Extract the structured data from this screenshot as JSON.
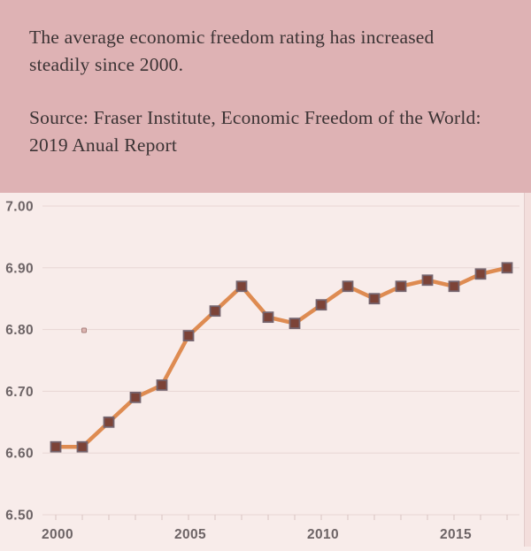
{
  "header": {
    "title": "The average economic freedom rating has increased steadily since 2000.",
    "source": "Source: Fraser Institute, Economic Freedom of the World: 2019 Anual Report"
  },
  "colors": {
    "header_bg": "#deb2b4",
    "chart_bg": "#f8ecea",
    "right_strip": "#f3dedc",
    "right_strip_border": "#e2cccb",
    "title_text": "#3b3334",
    "axis_label": "#6d6466",
    "gridline": "#e8d6d4",
    "axis_tick": "#d9c3c1",
    "line": "#de8b51",
    "marker_fill": "#7c4337",
    "marker_border": "#75656f",
    "stray_fill": "#dcb4b0",
    "stray_border": "#a8807c"
  },
  "chart_data": {
    "type": "line",
    "x": [
      2000,
      2001,
      2002,
      2003,
      2004,
      2005,
      2006,
      2007,
      2008,
      2009,
      2010,
      2011,
      2012,
      2013,
      2014,
      2015,
      2016,
      2017
    ],
    "values": [
      6.61,
      6.61,
      6.65,
      6.69,
      6.71,
      6.79,
      6.83,
      6.87,
      6.82,
      6.81,
      6.84,
      6.87,
      6.85,
      6.87,
      6.88,
      6.87,
      6.89,
      6.9
    ],
    "title": "The average economic freedom rating has increased steadily since 2000.",
    "source": "Source: Fraser Institute, Economic Freedom of the World: 2019 Anual Report",
    "xlabel": "",
    "ylabel": "",
    "ylim": [
      6.5,
      7.0
    ],
    "y_ticks": [
      6.5,
      6.6,
      6.7,
      6.8,
      6.9,
      7.0
    ],
    "y_tick_labels": [
      "6.50",
      "6.60",
      "6.70",
      "6.80",
      "6.90",
      "7.00"
    ],
    "x_tick_years": [
      2000,
      2005,
      2010,
      2015
    ],
    "x_tick_labels": [
      "2000",
      "2005",
      "2010",
      "2015"
    ],
    "grid": true,
    "legend_position": "none",
    "marker": "square"
  }
}
